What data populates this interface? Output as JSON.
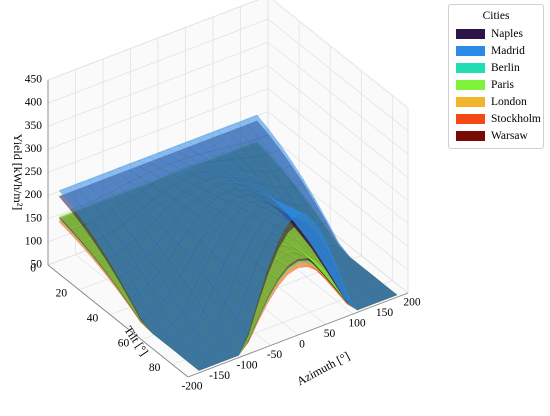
{
  "chart_data": {
    "type": "surface",
    "xlabel": "Azimuth [°]",
    "ylabel": "Tilt [°]",
    "zlabel": "Yield [kWh/m²]",
    "x_range": [
      -200,
      200
    ],
    "y_range": [
      0,
      90
    ],
    "z_range": [
      50,
      450
    ],
    "x_ticks": [
      -200,
      -150,
      -100,
      -50,
      0,
      50,
      100,
      150,
      200
    ],
    "y_ticks": [
      0,
      20,
      40,
      60,
      80
    ],
    "z_ticks": [
      50,
      100,
      150,
      200,
      250,
      300,
      350,
      400,
      450
    ],
    "grid": true,
    "legend": {
      "title": "Cities",
      "placement": "outside-top-right"
    },
    "series": [
      {
        "name": "Naples",
        "color": "#2d1646",
        "peak": 290,
        "min": 80
      },
      {
        "name": "Madrid",
        "color": "#2b8ae6",
        "peak": 310,
        "min": 85
      },
      {
        "name": "Berlin",
        "color": "#22dcb4",
        "peak": 205,
        "min": 70
      },
      {
        "name": "Paris",
        "color": "#7ff23c",
        "peak": 215,
        "min": 72
      },
      {
        "name": "London",
        "color": "#f2b428",
        "peak": 200,
        "min": 70
      },
      {
        "name": "Stockholm",
        "color": "#f24a12",
        "peak": 195,
        "min": 68
      },
      {
        "name": "Warsaw",
        "color": "#7a0a06",
        "peak": 210,
        "min": 70
      }
    ]
  }
}
